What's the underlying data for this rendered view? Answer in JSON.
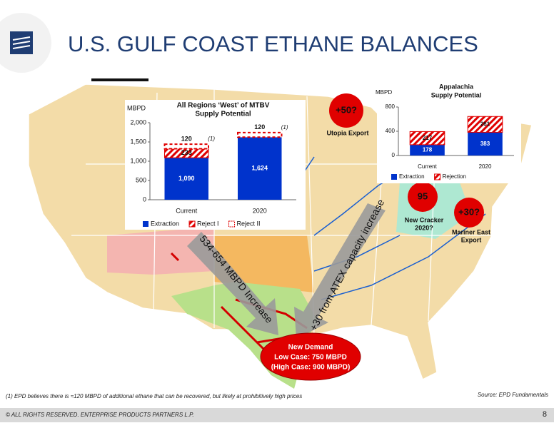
{
  "title": "U.S. GULF COAST ETHANE BALANCES",
  "chart_data": [
    {
      "type": "bar",
      "stacked": true,
      "title": [
        "All Regions ‘West’ of MTBV",
        "Supply Potential"
      ],
      "y_label": "MBPD",
      "categories": [
        "Current",
        "2020"
      ],
      "series": [
        {
          "name": "Extraction",
          "color": "#0033cc",
          "pattern": "solid",
          "values": [
            1090,
            1624
          ],
          "value_labels": [
            "1,090",
            "1,624"
          ]
        },
        {
          "name": "Reject I",
          "color": "#e00000",
          "pattern": "hatch",
          "values": [
            233,
            null
          ]
        },
        {
          "name": "Reject II",
          "color": "#e00000",
          "pattern": "dashed",
          "values": [
            120,
            120
          ]
        }
      ],
      "footnote_ref": "(1)",
      "ylim": [
        0,
        2000
      ],
      "yticks": [
        0,
        500,
        {
          "value": 1000,
          "label": "1,000"
        },
        {
          "value": 1500,
          "label": "1,500"
        },
        {
          "value": 2000,
          "label": "2,000"
        }
      ]
    },
    {
      "type": "bar",
      "stacked": true,
      "title": [
        "Appalachia",
        "Supply Potential"
      ],
      "y_label": "MBPD",
      "categories": [
        "Current",
        "2020"
      ],
      "series": [
        {
          "name": "Extraction",
          "color": "#0033cc",
          "pattern": "solid",
          "values": [
            178,
            383
          ]
        },
        {
          "name": "Rejection",
          "color": "#e00000",
          "pattern": "hatch",
          "values": [
            217,
            261
          ]
        }
      ],
      "ylim": [
        0,
        800
      ],
      "yticks": [
        0,
        400,
        800
      ]
    }
  ],
  "annotations": {
    "utopia": {
      "value": "+50?",
      "label": "Utopia Export"
    },
    "cracker": {
      "value": "95",
      "label": [
        "New Cracker",
        "2020?"
      ]
    },
    "mariner": {
      "value": "+30?",
      "label": [
        "Mariner East",
        "Export"
      ]
    },
    "arrow_west": "534-654 MBPD Increase",
    "arrow_east": "+30 from ATEX capacity increase",
    "demand": [
      "New Demand",
      "Low Case:  750 MBPD",
      "(High Case:  900 MBPD)"
    ]
  },
  "footnote": "(1) EPD believes there is ≈120 MBPD of additional ethane that can be recovered, but likely at prohibitively high prices",
  "source": "Source:  EPD Fundamentals",
  "footer": "© ALL RIGHTS RESERVED. ENTERPRISE PRODUCTS PARTNERS L.P.",
  "page_number": "8"
}
